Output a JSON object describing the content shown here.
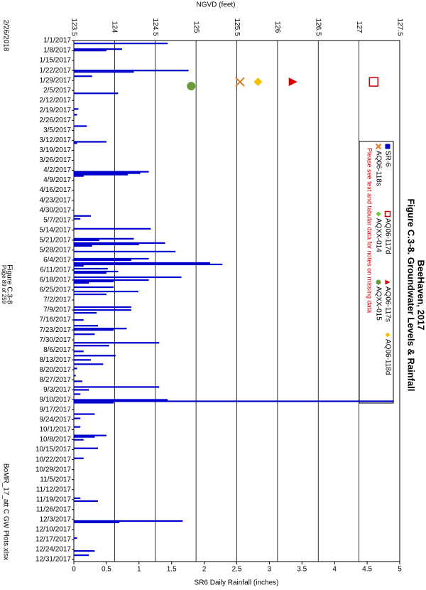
{
  "chart_data": {
    "type": "bar",
    "title": [
      "Figure C.3-8.  Groundwater Levels & Rainfall",
      "BeeHaven, 2017"
    ],
    "y_label": "SR6 Daily Rainfall (inches)",
    "y2_label": "NGVD (feet)",
    "note": "Please see text and tabular data for notes on missing data",
    "xlim": [
      "1/1/2017",
      "12/31/2017"
    ],
    "xticks": [
      "1/1/2017",
      "1/8/2017",
      "1/15/2017",
      "1/22/2017",
      "1/29/2017",
      "2/5/2017",
      "2/12/2017",
      "2/19/2017",
      "2/26/2017",
      "3/5/2017",
      "3/12/2017",
      "3/19/2017",
      "3/26/2017",
      "4/2/2017",
      "4/9/2017",
      "4/16/2017",
      "4/23/2017",
      "4/30/2017",
      "5/7/2017",
      "5/14/2017",
      "5/21/2017",
      "5/28/2017",
      "6/4/2017",
      "6/11/2017",
      "6/18/2017",
      "6/25/2017",
      "7/2/2017",
      "7/9/2017",
      "7/16/2017",
      "7/23/2017",
      "7/30/2017",
      "8/6/2017",
      "8/13/2017",
      "8/20/2017",
      "8/27/2017",
      "9/3/2017",
      "9/10/2017",
      "9/17/2017",
      "9/24/2017",
      "10/1/2017",
      "10/8/2017",
      "10/15/2017",
      "10/22/2017",
      "10/29/2017",
      "11/5/2017",
      "11/12/2017",
      "11/19/2017",
      "11/26/2017",
      "12/3/2017",
      "12/10/2017",
      "12/17/2017",
      "12/24/2017",
      "12/31/2017"
    ],
    "ylim": [
      0,
      5
    ],
    "yticks": [
      0,
      0.5,
      1,
      1.5,
      2,
      2.5,
      3,
      3.5,
      4,
      4.5,
      5
    ],
    "y2lim": [
      123.5,
      127.5
    ],
    "y2ticks": [
      123.5,
      124,
      124.5,
      125,
      125.5,
      126,
      126.5,
      127,
      127.5
    ],
    "grid": true,
    "series": [
      {
        "name": "SR-6",
        "color": "#0000cc",
        "marker": "square",
        "x": [
          "1/3/2017",
          "1/7/2017",
          "1/8/2017",
          "1/22/2017",
          "1/23/2017",
          "1/26/2017",
          "2/7/2017",
          "2/18/2017",
          "2/22/2017",
          "3/2/2017",
          "3/13/2017",
          "3/14/2017",
          "4/3/2017",
          "4/4/2017",
          "4/5/2017",
          "4/6/2017",
          "5/4/2017",
          "5/6/2017",
          "5/13/2017",
          "5/20/2017",
          "5/21/2017",
          "5/23/2017",
          "5/24/2017",
          "5/25/2017",
          "5/29/2017",
          "6/3/2017",
          "6/4/2017",
          "6/6/2017",
          "6/7/2017",
          "6/8/2017",
          "6/10/2017",
          "6/12/2017",
          "6/13/2017",
          "6/16/2017",
          "6/18/2017",
          "6/19/2017",
          "6/20/2017",
          "6/23/2017",
          "6/26/2017",
          "6/28/2017",
          "7/7/2017",
          "7/9/2017",
          "7/11/2017",
          "7/16/2017",
          "7/20/2017",
          "7/22/2017",
          "7/23/2017",
          "7/26/2017",
          "8/1/2017",
          "8/3/2017",
          "8/7/2017",
          "8/10/2017",
          "8/13/2017",
          "8/16/2017",
          "8/19/2017",
          "8/24/2017",
          "8/28/2017",
          "9/1/2017",
          "9/3/2017",
          "9/6/2017",
          "9/10/2017",
          "9/11/2017",
          "9/12/2017",
          "9/20/2017",
          "9/23/2017",
          "9/29/2017",
          "10/5/2017",
          "10/6/2017",
          "10/8/2017",
          "10/14/2017",
          "10/21/2017",
          "11/18/2017",
          "11/20/2017",
          "12/4/2017",
          "12/5/2017",
          "12/16/2017",
          "12/25/2017",
          "12/28/2017"
        ],
        "values": [
          1.44,
          0.74,
          0.5,
          1.76,
          0.92,
          0.28,
          0.68,
          0.07,
          0.05,
          0.2,
          0.5,
          0.05,
          1.15,
          1.02,
          0.83,
          0.15,
          0.26,
          0.1,
          1.18,
          0.92,
          0.39,
          1.4,
          1.0,
          0.28,
          1.56,
          1.15,
          0.88,
          2.09,
          2.28,
          0.15,
          0.52,
          0.68,
          0.5,
          1.65,
          1.15,
          0.61,
          0.23,
          0.61,
          0.99,
          0.5,
          0.88,
          0.88,
          0.35,
          0.15,
          0.37,
          0.81,
          0.61,
          0.32,
          1.31,
          0.54,
          0.15,
          0.64,
          0.26,
          0.45,
          0.05,
          0.03,
          0.13,
          1.31,
          0.23,
          0.1,
          1.44,
          4.91,
          0.61,
          0.32,
          0.1,
          0.1,
          0.5,
          0.32,
          0.15,
          0.37,
          0.15,
          0.1,
          0.37,
          1.67,
          0.7,
          0.05,
          0.32,
          0.23
        ]
      },
      {
        "name": "AQ06-118s",
        "color": "#e07b20",
        "marker": "x",
        "axis": "y2",
        "x": [
          "1/30/2017"
        ],
        "values": [
          125.54
        ]
      },
      {
        "name": "AQXX-014",
        "color": "#66cc33",
        "marker": "diamond",
        "axis": "y2",
        "x": [],
        "values": []
      },
      {
        "name": "AQ06-117d",
        "color": "#cc0000",
        "marker": "square-open",
        "axis": "y2",
        "x": [
          "1/30/2017"
        ],
        "values": [
          127.18
        ]
      },
      {
        "name": "AQXX-015",
        "color": "#6a9a3a",
        "marker": "circle",
        "axis": "y2",
        "x": [
          "2/2/2017"
        ],
        "values": [
          124.94
        ]
      },
      {
        "name": "AQ06-117s",
        "color": "#dd0000",
        "marker": "triangle",
        "axis": "y2",
        "x": [
          "1/30/2017"
        ],
        "values": [
          126.19
        ]
      },
      {
        "name": "AQ06-118d",
        "color": "#f5c000",
        "marker": "diamond",
        "axis": "y2",
        "x": [
          "1/30/2017"
        ],
        "values": [
          125.76
        ]
      }
    ]
  },
  "footer": {
    "date": "2/26/2018",
    "page": "Page 89 of 259",
    "figure": "Figure C.3-8",
    "file": "BoMR_17_att C GW Plots.xlsx"
  }
}
